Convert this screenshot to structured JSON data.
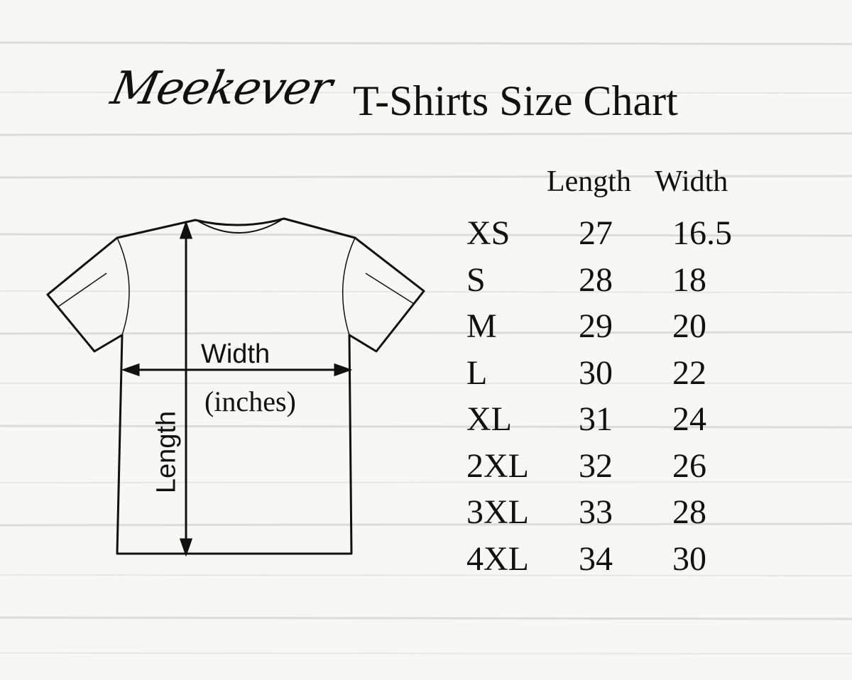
{
  "brand": "Meekever",
  "title": "T-Shirts Size Chart",
  "table": {
    "headers": [
      "Length",
      "Width"
    ],
    "rows": [
      {
        "size": "XS",
        "length": "27",
        "width": "16.5"
      },
      {
        "size": "S",
        "length": "28",
        "width": "18"
      },
      {
        "size": "M",
        "length": "29",
        "width": "20"
      },
      {
        "size": "L",
        "length": "30",
        "width": "22"
      },
      {
        "size": "XL",
        "length": "31",
        "width": "24"
      },
      {
        "size": "2XL",
        "length": "32",
        "width": "26"
      },
      {
        "size": "3XL",
        "length": "33",
        "width": "28"
      },
      {
        "size": "4XL",
        "length": "34",
        "width": "30"
      }
    ]
  },
  "diagram": {
    "width_label": "Width",
    "unit_label": "(inches)",
    "length_label": "Length"
  }
}
